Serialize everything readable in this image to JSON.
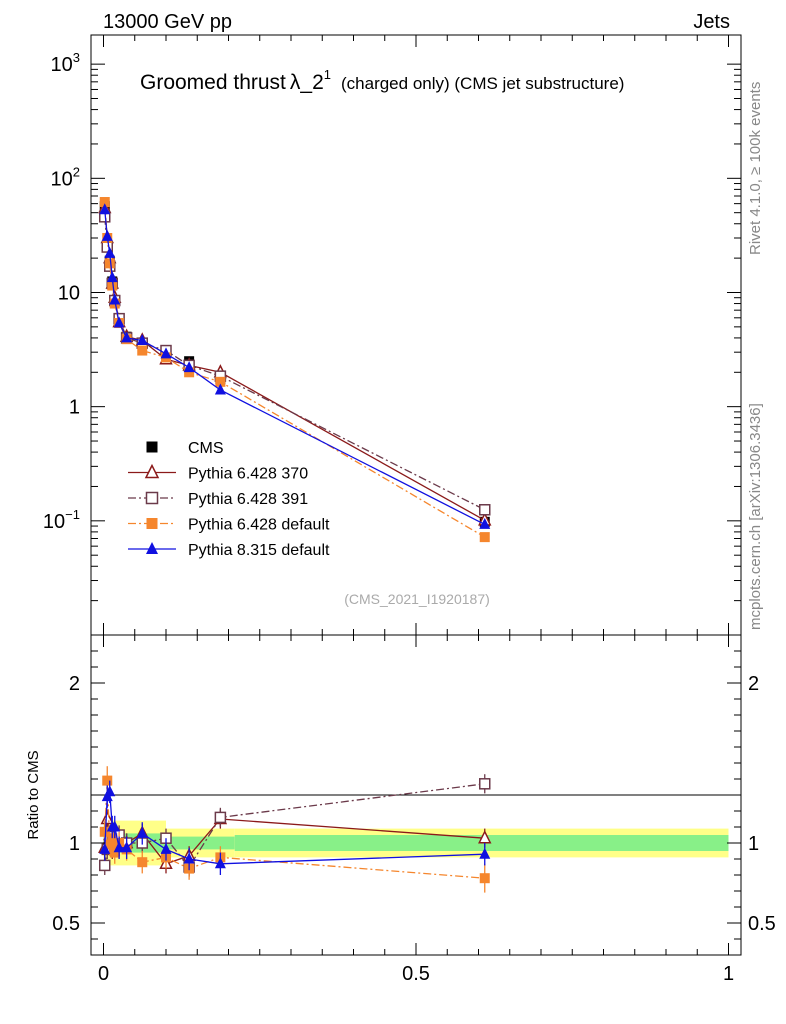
{
  "header": {
    "energy_label": "13000 GeV pp",
    "category_label": "Jets"
  },
  "side_labels": {
    "rivet": "Rivet 4.1.0, ≥ 100k events",
    "mcplots": "mcplots.cern.ch [arXiv:1306.3436]"
  },
  "chart_data": {
    "type": "scatter",
    "title": {
      "main": "Groomed thrust",
      "lambda": "λ",
      "suffix": "_2",
      "superscript": "1",
      "detail": "(charged only) (CMS jet substructure)"
    },
    "analysis_id": "(CMS_2021_I1920187)",
    "top_panel": {
      "yscale": "log",
      "ylim": [
        0.01,
        1800
      ],
      "ytick_labels": [
        {
          "value": 1000,
          "base": "10",
          "exp": "3"
        },
        {
          "value": 100,
          "base": "10",
          "exp": "2"
        },
        {
          "value": 10,
          "base": "10",
          "exp": ""
        },
        {
          "value": 1,
          "base": "1",
          "exp": ""
        },
        {
          "value": 0.1,
          "base": "10",
          "exp": "−1"
        }
      ]
    },
    "ratio_panel": {
      "ylabel": "Ratio to CMS",
      "ylim": [
        0.3,
        2.3
      ],
      "yticks": [
        0.5,
        1,
        2
      ],
      "ytick_labels": [
        "0.5",
        "1",
        "2"
      ]
    },
    "xlim": [
      -0.02,
      1.02
    ],
    "xticks": [
      0,
      0.5,
      1
    ],
    "xtick_labels": [
      "0",
      "0.5",
      "1"
    ],
    "uncertainty_bands": [
      {
        "x0": 0.0,
        "x1": 0.1,
        "inner": [
          0.94,
          1.06
        ],
        "outer": [
          0.86,
          1.14
        ]
      },
      {
        "x0": 0.1,
        "x1": 0.21,
        "inner": [
          0.96,
          1.04
        ],
        "outer": [
          0.91,
          1.09
        ]
      },
      {
        "x0": 0.21,
        "x1": 1.0,
        "inner": [
          0.95,
          1.05
        ],
        "outer": [
          0.91,
          1.09
        ]
      }
    ],
    "series": [
      {
        "name": "CMS",
        "legend_label": "CMS",
        "color": "#000000",
        "marker": "square-filled",
        "line": "none",
        "x": [
          0.002,
          0.006,
          0.01,
          0.014,
          0.018,
          0.025,
          0.037,
          0.062,
          0.1,
          0.137,
          0.187,
          0.61
        ],
        "y": [
          57,
          26,
          19,
          12.5,
          8.6,
          5.6,
          4.1,
          3.6,
          3.0,
          2.5,
          1.75,
          0.098
        ],
        "ratio": [
          1,
          1,
          1,
          1,
          1,
          1,
          1,
          1,
          1,
          1,
          1,
          1
        ],
        "ratio_err": [
          0,
          0,
          0,
          0,
          0,
          0,
          0,
          0,
          0,
          0,
          0,
          0
        ]
      },
      {
        "name": "Pythia 6.428 370",
        "legend_label": "Pythia 6.428 370",
        "color": "#8b1a1a",
        "marker": "triangle-open",
        "line": "solid",
        "x": [
          0.002,
          0.006,
          0.01,
          0.014,
          0.018,
          0.025,
          0.037,
          0.062,
          0.1,
          0.137,
          0.187,
          0.61
        ],
        "y": [
          55,
          30,
          20,
          12,
          9,
          5.5,
          4.1,
          3.8,
          2.6,
          2.3,
          2.0,
          0.101
        ],
        "ratio": [
          0.97,
          1.15,
          1.05,
          0.96,
          1.05,
          0.98,
          1.0,
          1.06,
          0.87,
          0.92,
          1.15,
          1.03
        ],
        "ratio_err": [
          0.06,
          0.06,
          0.06,
          0.06,
          0.06,
          0.06,
          0.06,
          0.06,
          0.06,
          0.06,
          0.06,
          0.06
        ]
      },
      {
        "name": "Pythia 6.428 391",
        "legend_label": "Pythia 6.428 391",
        "color": "#6b3a4a",
        "marker": "square-open",
        "line": "dashdot",
        "x": [
          0.002,
          0.006,
          0.01,
          0.014,
          0.018,
          0.025,
          0.037,
          0.062,
          0.1,
          0.137,
          0.187,
          0.61
        ],
        "y": [
          46,
          25,
          17,
          12,
          8.5,
          5.9,
          4.0,
          3.6,
          3.1,
          2.3,
          1.85,
          0.125
        ],
        "ratio": [
          0.86,
          0.96,
          1.04,
          1.02,
          0.98,
          1.05,
          1.0,
          1.0,
          1.03,
          0.85,
          1.16,
          1.37
        ],
        "ratio_err": [
          0.06,
          0.06,
          0.06,
          0.06,
          0.06,
          0.06,
          0.06,
          0.06,
          0.06,
          0.06,
          0.06,
          0.06
        ]
      },
      {
        "name": "Pythia 6.428 default",
        "legend_label": "Pythia 6.428 default",
        "color": "#f5862d",
        "marker": "square-filled",
        "line": "dashdot",
        "x": [
          0.002,
          0.006,
          0.01,
          0.014,
          0.018,
          0.025,
          0.037,
          0.062,
          0.1,
          0.137,
          0.187,
          0.61
        ],
        "y": [
          62,
          30,
          18,
          11.5,
          8.0,
          5.4,
          3.9,
          3.1,
          2.7,
          2.0,
          1.65,
          0.072
        ],
        "ratio": [
          1.07,
          1.39,
          0.99,
          1.03,
          0.94,
          1.0,
          0.96,
          0.88,
          0.91,
          0.84,
          0.91,
          0.78
        ],
        "ratio_err": [
          0.07,
          0.09,
          0.07,
          0.07,
          0.07,
          0.07,
          0.07,
          0.07,
          0.07,
          0.07,
          0.07,
          0.09
        ]
      },
      {
        "name": "Pythia 8.315 default",
        "legend_label": "Pythia 8.315 default",
        "color": "#1010e0",
        "marker": "triangle-filled",
        "line": "solid",
        "x": [
          0.002,
          0.006,
          0.01,
          0.014,
          0.018,
          0.025,
          0.037,
          0.062,
          0.1,
          0.137,
          0.187,
          0.61
        ],
        "y": [
          53,
          31,
          22,
          13.5,
          8.6,
          5.4,
          4.0,
          3.8,
          2.9,
          2.2,
          1.4,
          0.093
        ],
        "ratio": [
          0.96,
          1.29,
          1.32,
          1.1,
          1.1,
          0.97,
          0.97,
          1.06,
          0.96,
          0.9,
          0.87,
          0.93
        ],
        "ratio_err": [
          0.07,
          0.07,
          0.07,
          0.07,
          0.07,
          0.07,
          0.07,
          0.07,
          0.07,
          0.07,
          0.07,
          0.07
        ]
      }
    ]
  }
}
